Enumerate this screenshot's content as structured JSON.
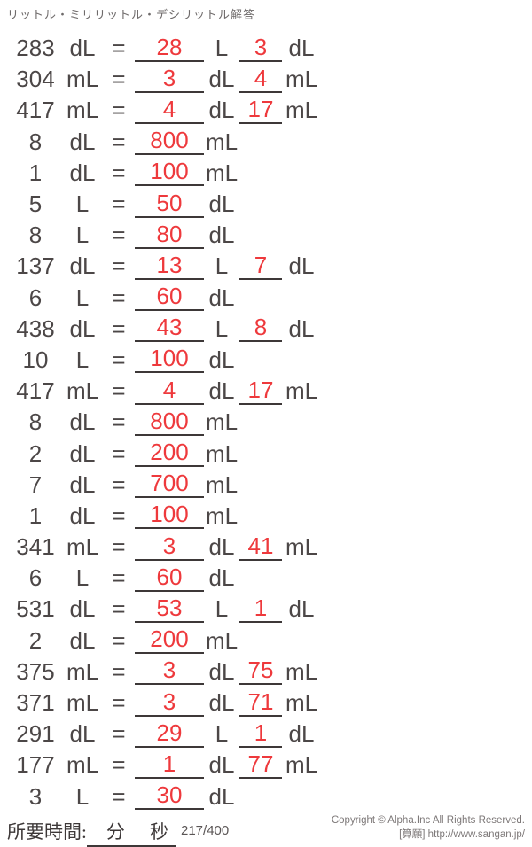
{
  "title": "リットル・ミリリットル・デシリットル解答",
  "equals_label": "=",
  "rows": [
    {
      "value": "283",
      "unit": "dL",
      "answer1": "28",
      "unit2": "L",
      "answer2": "3",
      "unit3": "dL"
    },
    {
      "value": "304",
      "unit": "mL",
      "answer1": "3",
      "unit2": "dL",
      "answer2": "4",
      "unit3": "mL"
    },
    {
      "value": "417",
      "unit": "mL",
      "answer1": "4",
      "unit2": "dL",
      "answer2": "17",
      "unit3": "mL"
    },
    {
      "value": "8",
      "unit": "dL",
      "answer1": "800",
      "unit2": "mL",
      "answer2": null,
      "unit3": null
    },
    {
      "value": "1",
      "unit": "dL",
      "answer1": "100",
      "unit2": "mL",
      "answer2": null,
      "unit3": null
    },
    {
      "value": "5",
      "unit": "L",
      "answer1": "50",
      "unit2": "dL",
      "answer2": null,
      "unit3": null
    },
    {
      "value": "8",
      "unit": "L",
      "answer1": "80",
      "unit2": "dL",
      "answer2": null,
      "unit3": null
    },
    {
      "value": "137",
      "unit": "dL",
      "answer1": "13",
      "unit2": "L",
      "answer2": "7",
      "unit3": "dL"
    },
    {
      "value": "6",
      "unit": "L",
      "answer1": "60",
      "unit2": "dL",
      "answer2": null,
      "unit3": null
    },
    {
      "value": "438",
      "unit": "dL",
      "answer1": "43",
      "unit2": "L",
      "answer2": "8",
      "unit3": "dL"
    },
    {
      "value": "10",
      "unit": "L",
      "answer1": "100",
      "unit2": "dL",
      "answer2": null,
      "unit3": null
    },
    {
      "value": "417",
      "unit": "mL",
      "answer1": "4",
      "unit2": "dL",
      "answer2": "17",
      "unit3": "mL"
    },
    {
      "value": "8",
      "unit": "dL",
      "answer1": "800",
      "unit2": "mL",
      "answer2": null,
      "unit3": null
    },
    {
      "value": "2",
      "unit": "dL",
      "answer1": "200",
      "unit2": "mL",
      "answer2": null,
      "unit3": null
    },
    {
      "value": "7",
      "unit": "dL",
      "answer1": "700",
      "unit2": "mL",
      "answer2": null,
      "unit3": null
    },
    {
      "value": "1",
      "unit": "dL",
      "answer1": "100",
      "unit2": "mL",
      "answer2": null,
      "unit3": null
    },
    {
      "value": "341",
      "unit": "mL",
      "answer1": "3",
      "unit2": "dL",
      "answer2": "41",
      "unit3": "mL"
    },
    {
      "value": "6",
      "unit": "L",
      "answer1": "60",
      "unit2": "dL",
      "answer2": null,
      "unit3": null
    },
    {
      "value": "531",
      "unit": "dL",
      "answer1": "53",
      "unit2": "L",
      "answer2": "1",
      "unit3": "dL"
    },
    {
      "value": "2",
      "unit": "dL",
      "answer1": "200",
      "unit2": "mL",
      "answer2": null,
      "unit3": null
    },
    {
      "value": "375",
      "unit": "mL",
      "answer1": "3",
      "unit2": "dL",
      "answer2": "75",
      "unit3": "mL"
    },
    {
      "value": "371",
      "unit": "mL",
      "answer1": "3",
      "unit2": "dL",
      "answer2": "71",
      "unit3": "mL"
    },
    {
      "value": "291",
      "unit": "dL",
      "answer1": "29",
      "unit2": "L",
      "answer2": "1",
      "unit3": "dL"
    },
    {
      "value": "177",
      "unit": "mL",
      "answer1": "1",
      "unit2": "dL",
      "answer2": "77",
      "unit3": "mL"
    },
    {
      "value": "3",
      "unit": "L",
      "answer1": "30",
      "unit2": "dL",
      "answer2": null,
      "unit3": null
    }
  ],
  "footer": {
    "time_label": "所要時間:",
    "minutes_label": "分",
    "seconds_label": "秒",
    "page_number": "217/400",
    "copyright": "Copyright © Alpha.Inc All Rights Reserved.",
    "site": "[算願] http://www.sangan.jp/"
  },
  "colors": {
    "answer_red": "#ee393c",
    "text_dark": "#4c4747",
    "underline": "#3d3838",
    "muted": "#7d7878"
  }
}
